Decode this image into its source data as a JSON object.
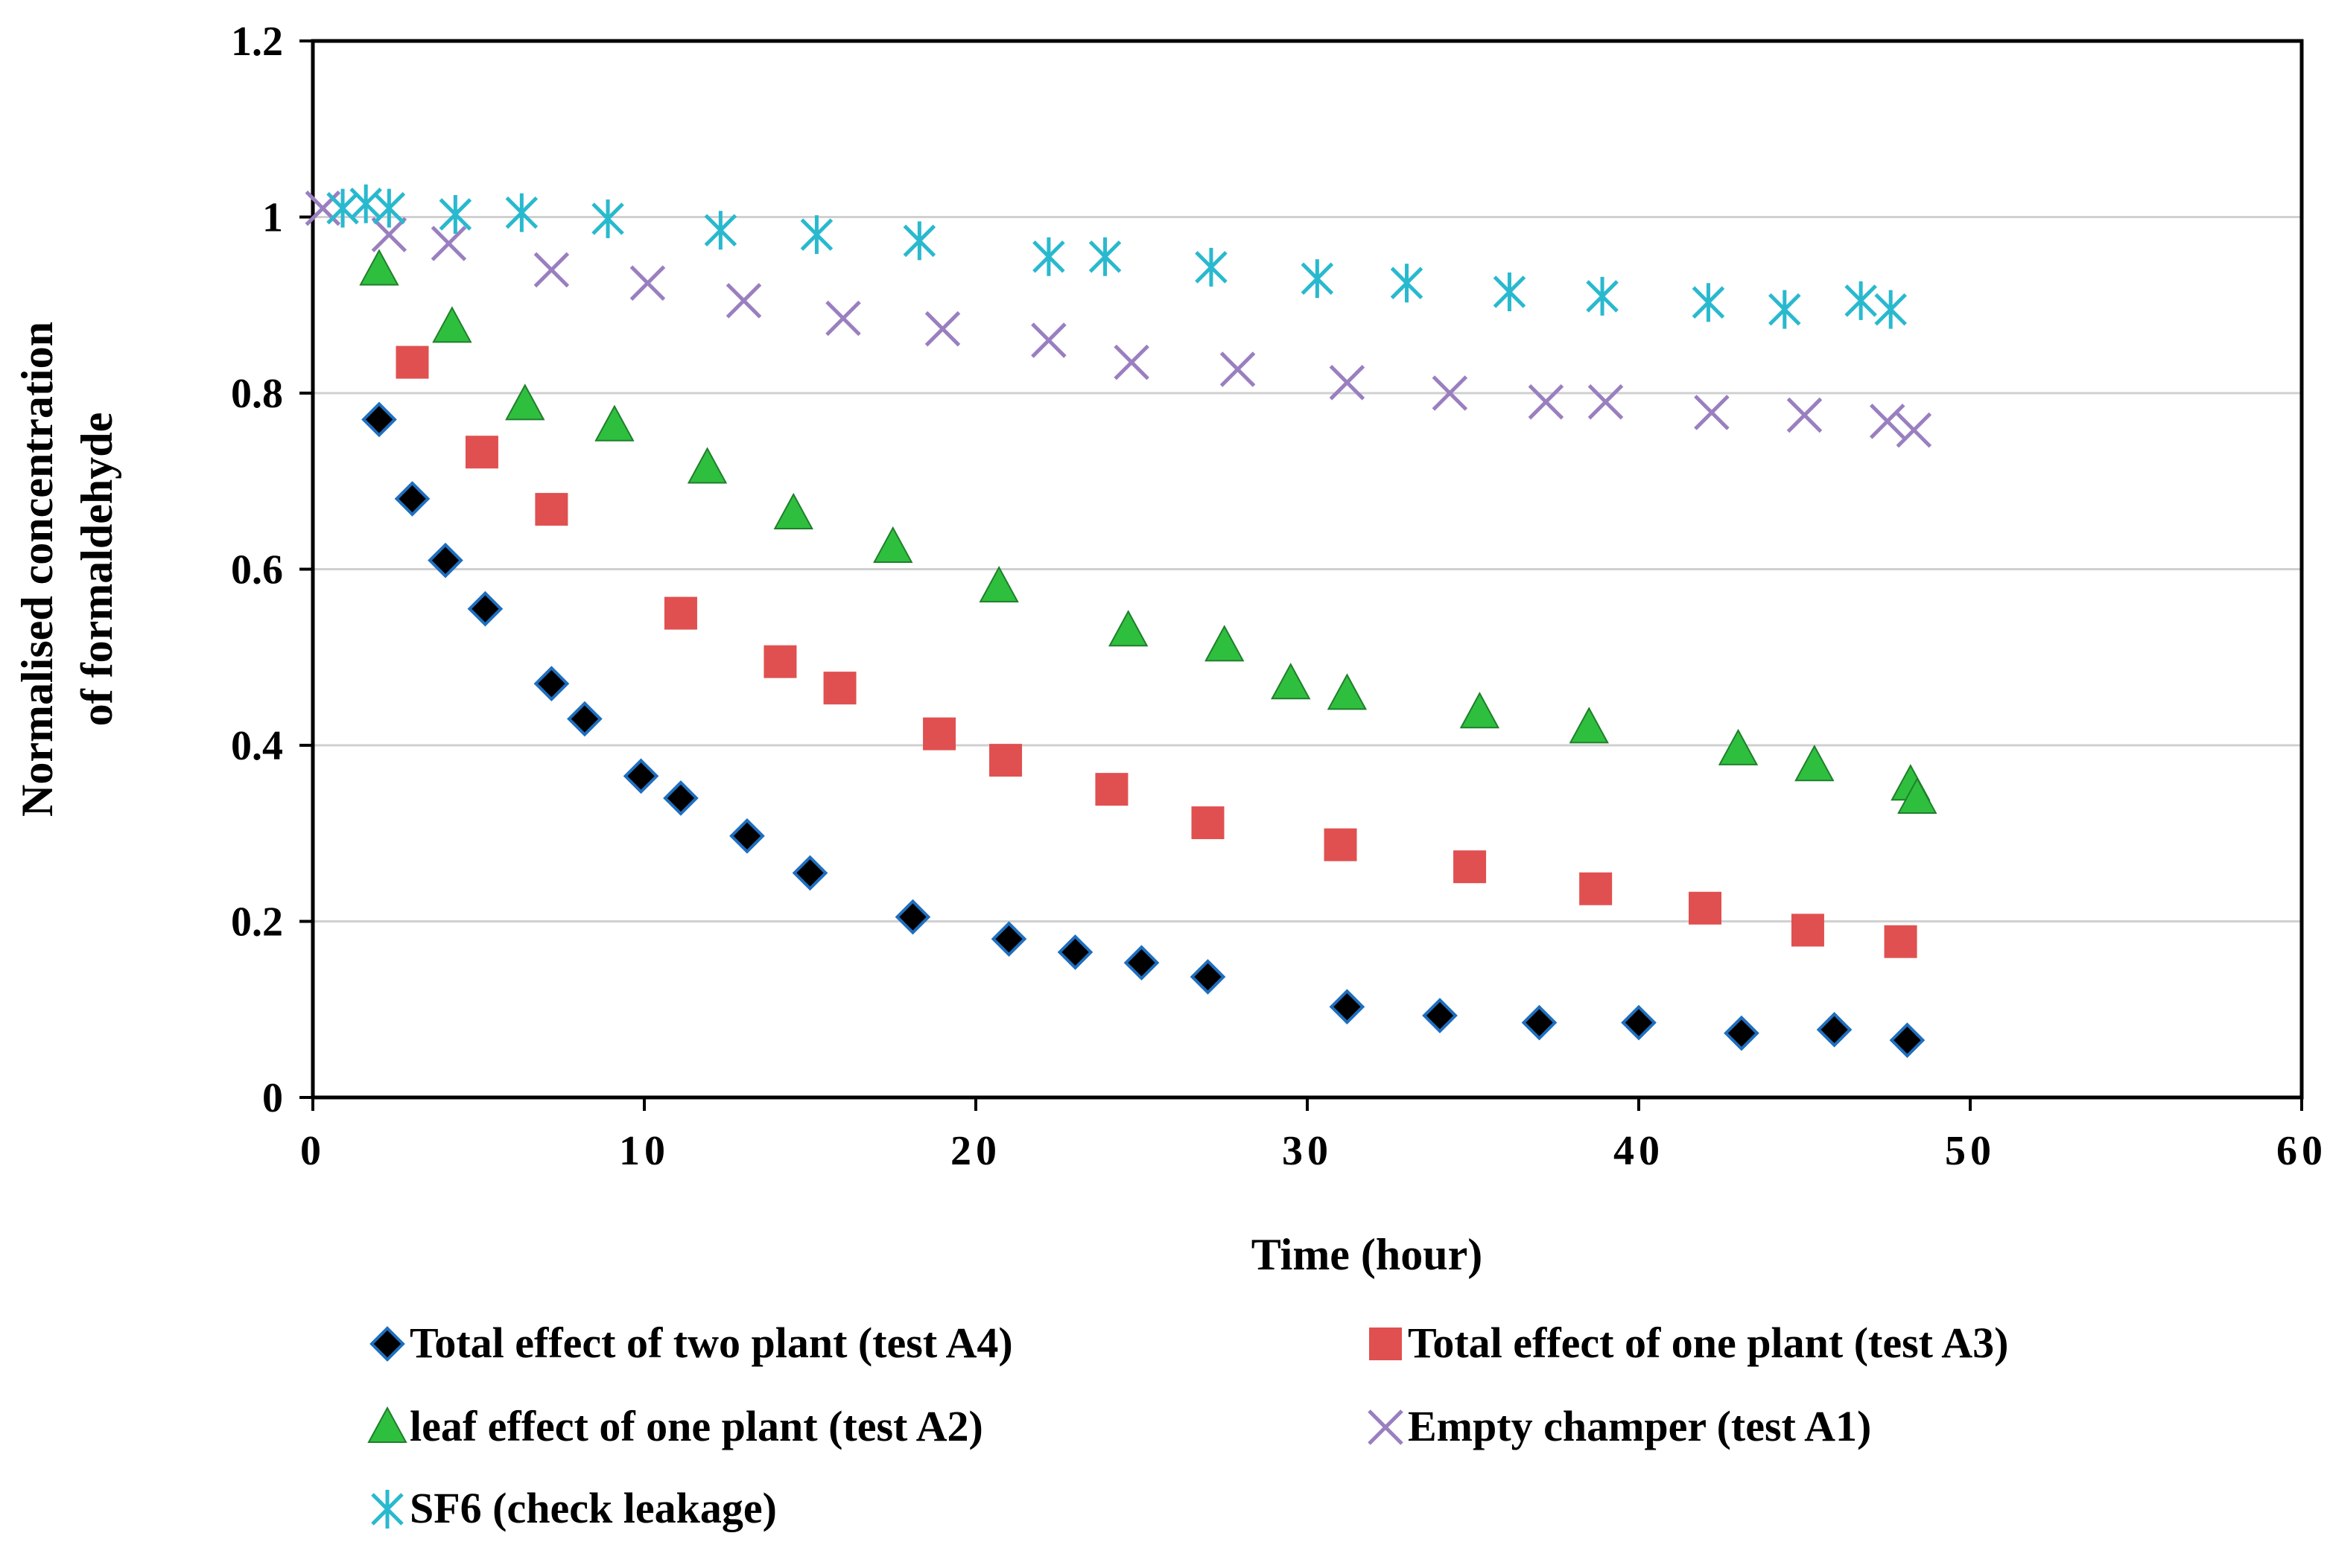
{
  "chart_data": {
    "type": "scatter",
    "title": "",
    "xlabel": "Time (hour)",
    "ylabel_lines": [
      "Normalised concentration",
      "of formaldehyde"
    ],
    "xlim": [
      0,
      60
    ],
    "ylim": [
      0,
      1.2
    ],
    "x_ticks": [
      0,
      10,
      20,
      30,
      40,
      50,
      60
    ],
    "x_tick_labels": [
      "0",
      "10",
      "20",
      "30",
      "40",
      "50",
      "60"
    ],
    "y_ticks": [
      0,
      0.2,
      0.4,
      0.6,
      0.8,
      1,
      1.2
    ],
    "y_tick_labels": [
      "0",
      "0.2",
      "0.4",
      "0.6",
      "0.8",
      "1",
      "1.2"
    ],
    "grid": "horizontal",
    "legend_position": "bottom",
    "series": [
      {
        "name": "Total effect of two plant (test A4)",
        "marker": "diamond",
        "color": "#000000",
        "outline": "#1f6fbf",
        "points": [
          [
            2,
            0.77
          ],
          [
            3,
            0.68
          ],
          [
            4,
            0.61
          ],
          [
            5.2,
            0.555
          ],
          [
            7.2,
            0.47
          ],
          [
            8.2,
            0.43
          ],
          [
            9.9,
            0.365
          ],
          [
            11.1,
            0.34
          ],
          [
            13.1,
            0.297
          ],
          [
            15,
            0.255
          ],
          [
            18.1,
            0.205
          ],
          [
            21,
            0.18
          ],
          [
            23,
            0.165
          ],
          [
            25,
            0.153
          ],
          [
            27,
            0.137
          ],
          [
            31.2,
            0.103
          ],
          [
            34,
            0.093
          ],
          [
            37,
            0.085
          ],
          [
            40,
            0.085
          ],
          [
            43.1,
            0.073
          ],
          [
            45.9,
            0.077
          ],
          [
            48.1,
            0.065
          ]
        ]
      },
      {
        "name": "Total effect of one plant (test A3)",
        "marker": "square",
        "color": "#e05050",
        "points": [
          [
            3,
            0.835
          ],
          [
            5.1,
            0.733
          ],
          [
            7.2,
            0.668
          ],
          [
            11.1,
            0.55
          ],
          [
            14.1,
            0.495
          ],
          [
            15.9,
            0.465
          ],
          [
            18.9,
            0.413
          ],
          [
            20.9,
            0.383
          ],
          [
            24.1,
            0.35
          ],
          [
            27,
            0.312
          ],
          [
            31,
            0.287
          ],
          [
            34.9,
            0.262
          ],
          [
            38.7,
            0.237
          ],
          [
            42,
            0.215
          ],
          [
            45.1,
            0.19
          ],
          [
            47.9,
            0.177
          ]
        ]
      },
      {
        "name": "leaf effect of one plant (test A2)",
        "marker": "triangle",
        "color": "#2fbf3f",
        "points": [
          [
            2,
            0.94
          ],
          [
            4.2,
            0.875
          ],
          [
            6.4,
            0.787
          ],
          [
            9.1,
            0.763
          ],
          [
            11.9,
            0.715
          ],
          [
            14.5,
            0.663
          ],
          [
            17.5,
            0.625
          ],
          [
            20.7,
            0.58
          ],
          [
            24.6,
            0.53
          ],
          [
            27.5,
            0.513
          ],
          [
            29.5,
            0.47
          ],
          [
            31.2,
            0.458
          ],
          [
            35.2,
            0.437
          ],
          [
            38.5,
            0.42
          ],
          [
            43,
            0.395
          ],
          [
            45.3,
            0.377
          ],
          [
            48.2,
            0.355
          ],
          [
            48.4,
            0.34
          ]
        ]
      },
      {
        "name": "Empty champer (test A1)",
        "marker": "x",
        "color": "#9a7fc0",
        "points": [
          [
            0.3,
            1.01
          ],
          [
            2.3,
            0.98
          ],
          [
            4.1,
            0.97
          ],
          [
            7.2,
            0.94
          ],
          [
            10.1,
            0.925
          ],
          [
            13,
            0.905
          ],
          [
            16,
            0.885
          ],
          [
            19,
            0.873
          ],
          [
            22.2,
            0.86
          ],
          [
            24.7,
            0.835
          ],
          [
            27.9,
            0.827
          ],
          [
            31.2,
            0.812
          ],
          [
            34.3,
            0.8
          ],
          [
            37.2,
            0.79
          ],
          [
            39,
            0.79
          ],
          [
            42.2,
            0.778
          ],
          [
            45,
            0.775
          ],
          [
            47.5,
            0.768
          ],
          [
            48.3,
            0.758
          ]
        ]
      },
      {
        "name": "SF6 (check leakage)",
        "marker": "asterisk",
        "color": "#29b9cf",
        "points": [
          [
            0.9,
            1.01
          ],
          [
            1.6,
            1.015
          ],
          [
            2.3,
            1.01
          ],
          [
            4.3,
            1.003
          ],
          [
            6.3,
            1.005
          ],
          [
            8.9,
            0.998
          ],
          [
            12.3,
            0.985
          ],
          [
            15.2,
            0.98
          ],
          [
            18.3,
            0.973
          ],
          [
            22.2,
            0.955
          ],
          [
            23.9,
            0.955
          ],
          [
            27.1,
            0.943
          ],
          [
            30.3,
            0.93
          ],
          [
            33,
            0.925
          ],
          [
            36.1,
            0.915
          ],
          [
            38.9,
            0.91
          ],
          [
            42.1,
            0.903
          ],
          [
            44.4,
            0.895
          ],
          [
            46.7,
            0.905
          ],
          [
            47.6,
            0.895
          ]
        ]
      }
    ]
  }
}
